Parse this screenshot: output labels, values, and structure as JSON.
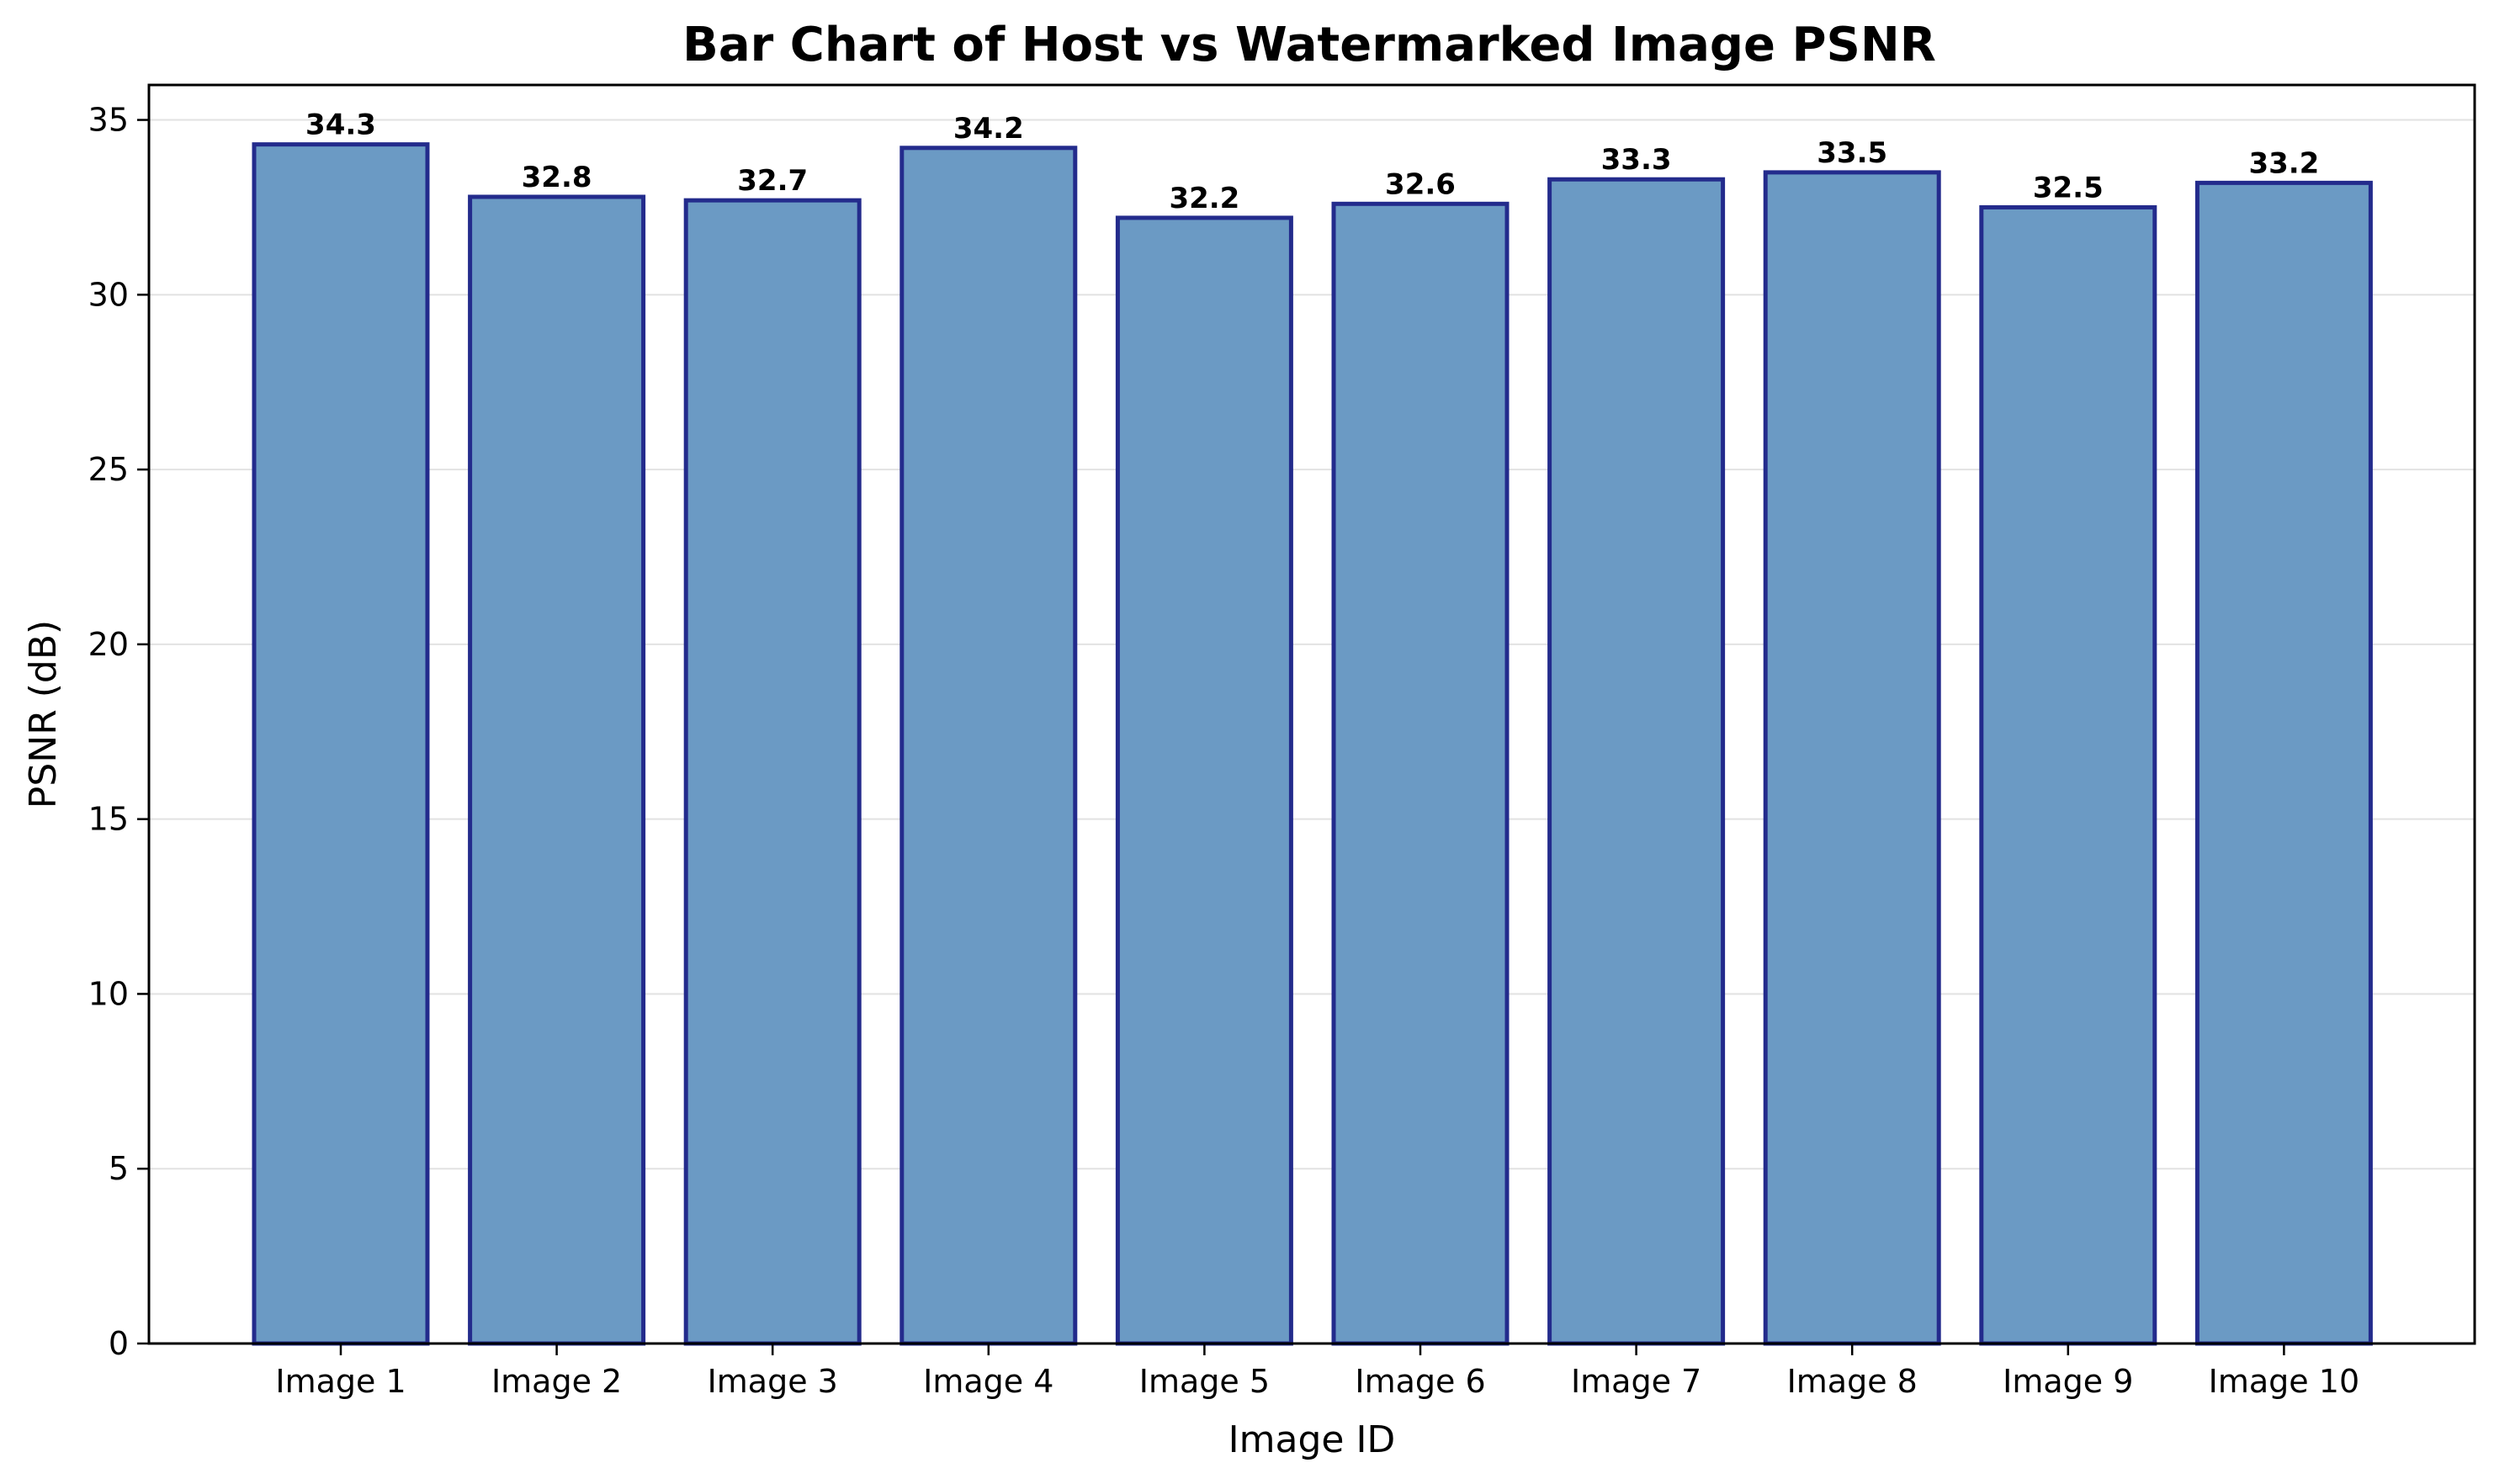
{
  "chart_data": {
    "type": "bar",
    "title": "Bar Chart of Host vs Watermarked Image PSNR",
    "xlabel": "Image ID",
    "ylabel": "PSNR (dB)",
    "categories": [
      "Image 1",
      "Image 2",
      "Image 3",
      "Image 4",
      "Image 5",
      "Image 6",
      "Image 7",
      "Image 8",
      "Image 9",
      "Image 10"
    ],
    "values": [
      34.3,
      32.8,
      32.7,
      34.2,
      32.2,
      32.6,
      33.3,
      33.5,
      32.5,
      33.2
    ],
    "value_labels": [
      "34.3",
      "32.8",
      "32.7",
      "34.2",
      "32.2",
      "32.6",
      "33.3",
      "33.5",
      "32.5",
      "33.2"
    ],
    "ylim": [
      0,
      36
    ],
    "yticks": [
      0,
      5,
      10,
      15,
      20,
      25,
      30,
      35
    ],
    "ytick_labels": [
      "0",
      "5",
      "10",
      "15",
      "20",
      "25",
      "30",
      "35"
    ],
    "grid": "horizontal",
    "colors": {
      "bar_fill": "#6b9ac4",
      "bar_edge": "#232b8c"
    }
  }
}
